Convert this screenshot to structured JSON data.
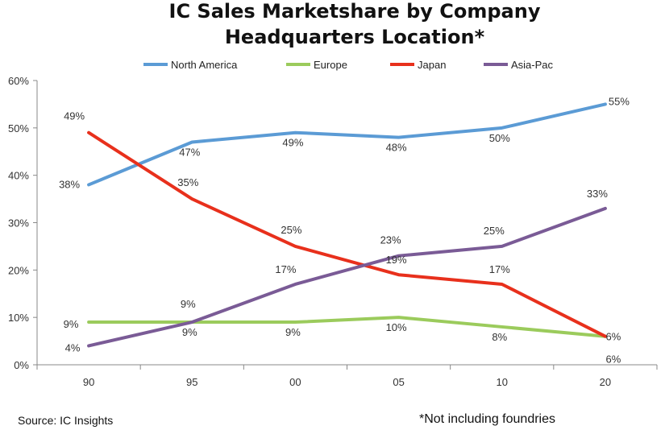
{
  "chart_data": {
    "type": "line",
    "title_lines": [
      "IC Sales Marketshare by Company",
      "Headquarters Location*"
    ],
    "categories": [
      "90",
      "95",
      "00",
      "05",
      "10",
      "20"
    ],
    "ylim": [
      0,
      60
    ],
    "yticks": [
      0,
      10,
      20,
      30,
      40,
      50,
      60
    ],
    "ytick_labels": [
      "0%",
      "10%",
      "20%",
      "30%",
      "40%",
      "50%",
      "60%"
    ],
    "grid": false,
    "legend_position": "top",
    "series": [
      {
        "name": "North America",
        "color": "#5b9bd5",
        "values": [
          38,
          47,
          49,
          48,
          50,
          55
        ],
        "labels": [
          "38%",
          "47%",
          "49%",
          "48%",
          "50%",
          "55%"
        ]
      },
      {
        "name": "Europe",
        "color": "#9bcb5c",
        "values": [
          9,
          9,
          9,
          10,
          8,
          6
        ],
        "labels": [
          "9%",
          "9%",
          "9%",
          "10%",
          "8%",
          "6%"
        ]
      },
      {
        "name": "Japan",
        "color": "#e8301c",
        "values": [
          49,
          35,
          25,
          19,
          17,
          6
        ],
        "labels": [
          "49%",
          "35%",
          "25%",
          "19%",
          "17%",
          "6%"
        ]
      },
      {
        "name": "Asia-Pac",
        "color": "#7a5b96",
        "values": [
          4,
          9,
          17,
          23,
          25,
          33
        ],
        "labels": [
          "4%",
          "9%",
          "17%",
          "23%",
          "25%",
          "33%"
        ]
      }
    ]
  },
  "footer": {
    "source": "Source:  IC Insights",
    "footnote": "*Not including foundries"
  }
}
